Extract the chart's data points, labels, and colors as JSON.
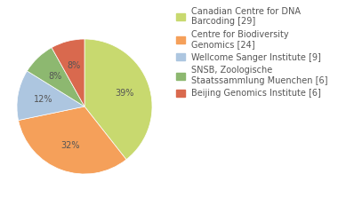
{
  "labels": [
    "Canadian Centre for DNA\nBarcoding [29]",
    "Centre for Biodiversity\nGenomics [24]",
    "Wellcome Sanger Institute [9]",
    "SNSB, Zoologische\nStaatssammlung Muenchen [6]",
    "Beijing Genomics Institute [6]"
  ],
  "values": [
    39,
    32,
    12,
    8,
    8
  ],
  "colors": [
    "#c8d96f",
    "#f5a05a",
    "#adc6e0",
    "#8db870",
    "#d9694e"
  ],
  "pct_labels": [
    "39%",
    "32%",
    "12%",
    "8%",
    "8%"
  ],
  "background_color": "#ffffff",
  "text_color": "#555555",
  "fontsize": 7.0,
  "legend_fontsize": 7.0
}
